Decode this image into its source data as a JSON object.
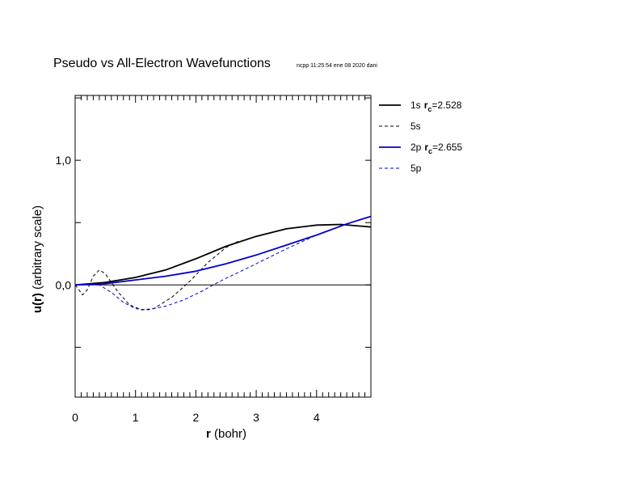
{
  "chart_data": {
    "type": "line",
    "title": "Pseudo vs All-Electron Wavefunctions",
    "subtitle": "ncpp 11:25:54 ene 08 2020 dani",
    "xlabel": {
      "bold": "r",
      "rest": " (bohr)"
    },
    "ylabel": {
      "bold": "u(r)",
      "rest": "  (arbitrary scale)"
    },
    "xlim": [
      0,
      4.9
    ],
    "ylim": [
      -0.9,
      1.52
    ],
    "x_ticks": [
      {
        "value": 0,
        "label": "0"
      },
      {
        "value": 1,
        "label": "1"
      },
      {
        "value": 2,
        "label": "2"
      },
      {
        "value": 3,
        "label": "3"
      },
      {
        "value": 4,
        "label": "4"
      }
    ],
    "y_ticks": [
      {
        "value": 0,
        "label": "0,0"
      },
      {
        "value": 1,
        "label": "1,0"
      }
    ],
    "y_minor_ticks": [
      -0.5,
      0.5,
      1.5
    ],
    "zero_line": true,
    "grid": false,
    "legend_position": "right",
    "series": [
      {
        "name": "1s",
        "rc": "2.528",
        "color": "#000000",
        "dash": "solid",
        "width": 1.8,
        "points": [
          [
            0,
            0
          ],
          [
            0.5,
            0.02
          ],
          [
            1,
            0.06
          ],
          [
            1.5,
            0.12
          ],
          [
            2,
            0.21
          ],
          [
            2.5,
            0.31
          ],
          [
            3,
            0.39
          ],
          [
            3.5,
            0.45
          ],
          [
            4,
            0.48
          ],
          [
            4.4,
            0.485
          ],
          [
            4.9,
            0.465
          ]
        ]
      },
      {
        "name": "5s",
        "color": "#000000",
        "dash": "dashed",
        "width": 1,
        "points": [
          [
            0,
            0
          ],
          [
            0.05,
            -0.03
          ],
          [
            0.12,
            -0.08
          ],
          [
            0.2,
            -0.04
          ],
          [
            0.3,
            0.07
          ],
          [
            0.4,
            0.12
          ],
          [
            0.5,
            0.09
          ],
          [
            0.7,
            -0.05
          ],
          [
            0.9,
            -0.16
          ],
          [
            1.1,
            -0.2
          ],
          [
            1.3,
            -0.19
          ],
          [
            1.6,
            -0.1
          ],
          [
            1.9,
            0.03
          ],
          [
            2.2,
            0.18
          ],
          [
            2.5,
            0.3
          ],
          [
            2.7,
            0.35
          ]
        ]
      },
      {
        "name": "2p",
        "rc": "2.655",
        "color": "#0000cc",
        "dash": "solid",
        "width": 1.8,
        "points": [
          [
            0,
            0
          ],
          [
            0.5,
            0.01
          ],
          [
            1,
            0.04
          ],
          [
            1.5,
            0.07
          ],
          [
            2,
            0.11
          ],
          [
            2.5,
            0.17
          ],
          [
            3,
            0.24
          ],
          [
            3.5,
            0.32
          ],
          [
            4,
            0.4
          ],
          [
            4.5,
            0.49
          ],
          [
            4.9,
            0.55
          ]
        ]
      },
      {
        "name": "5p",
        "color": "#0000cc",
        "dash": "dashed",
        "width": 1,
        "points": [
          [
            0,
            0
          ],
          [
            0.2,
            0.01
          ],
          [
            0.4,
            0
          ],
          [
            0.6,
            -0.06
          ],
          [
            0.8,
            -0.14
          ],
          [
            1,
            -0.19
          ],
          [
            1.2,
            -0.2
          ],
          [
            1.5,
            -0.17
          ],
          [
            1.8,
            -0.12
          ],
          [
            2.1,
            -0.05
          ],
          [
            2.4,
            0.03
          ],
          [
            2.7,
            0.1
          ],
          [
            3,
            0.17
          ],
          [
            3.5,
            0.29
          ],
          [
            4,
            0.4
          ],
          [
            4.5,
            0.49
          ]
        ]
      }
    ]
  }
}
